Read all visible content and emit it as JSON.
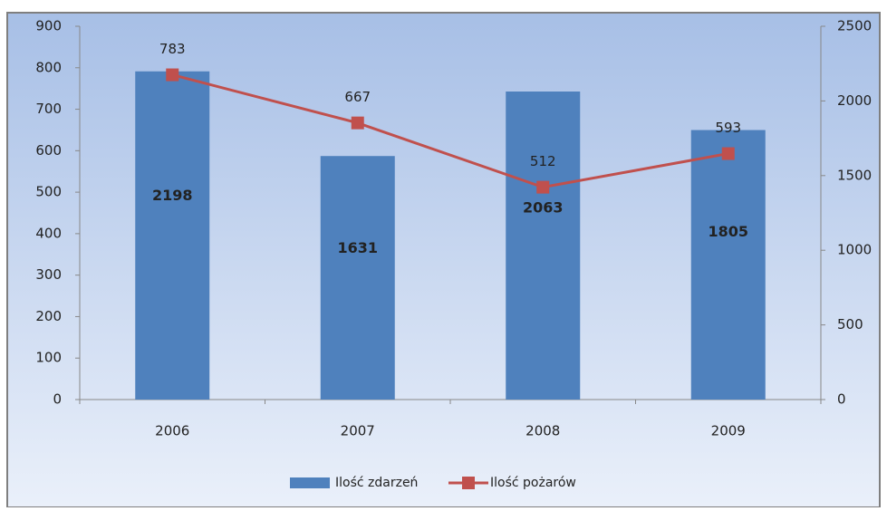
{
  "chart_data": {
    "type": "bar-line",
    "categories": [
      "2006",
      "2007",
      "2008",
      "2009"
    ],
    "series": [
      {
        "name": "Ilość zdarzeń",
        "type": "bar",
        "color": "#4f81bd",
        "axis": "y2",
        "values": [
          2198,
          1631,
          2063,
          1805
        ]
      },
      {
        "name": "Ilość pożarów",
        "type": "line",
        "color": "#c0504d",
        "values": [
          783,
          667,
          512,
          593
        ]
      }
    ],
    "ylim": [
      0,
      900
    ],
    "yticks": [
      0,
      100,
      200,
      300,
      400,
      500,
      600,
      700,
      800,
      900
    ],
    "y2lim": [
      0,
      2500
    ],
    "y2ticks": [
      0,
      500,
      1000,
      1500,
      2000,
      2500
    ],
    "grid": false,
    "legend": "bottom"
  }
}
